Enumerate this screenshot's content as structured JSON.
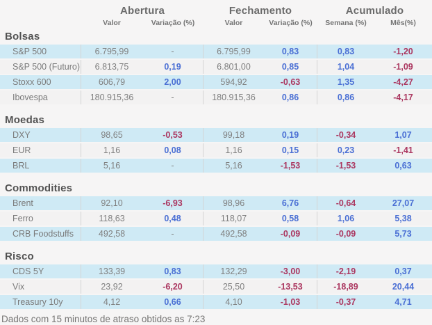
{
  "header": {
    "groups": [
      {
        "label": "Abertura",
        "subs": [
          "Valor",
          "Variação (%)"
        ]
      },
      {
        "label": "Fechamento",
        "subs": [
          "Valor",
          "Variação (%)"
        ]
      },
      {
        "label": "Acumulado",
        "subs": [
          "Semana (%)",
          "Mês(%)"
        ]
      }
    ]
  },
  "sections": [
    {
      "title": "Bolsas",
      "rows": [
        {
          "label": "S&P 500",
          "cells": [
            {
              "v": "6.795,99",
              "s": "n"
            },
            {
              "v": "-",
              "s": "n"
            },
            {
              "v": "6.795,99",
              "s": "n"
            },
            {
              "v": "0,83",
              "s": "pos"
            },
            {
              "v": "0,83",
              "s": "pos"
            },
            {
              "v": "-1,20",
              "s": "neg"
            }
          ]
        },
        {
          "label": "S&P 500 (Futuro)",
          "cells": [
            {
              "v": "6.813,75",
              "s": "n"
            },
            {
              "v": "0,19",
              "s": "pos"
            },
            {
              "v": "6.801,00",
              "s": "n"
            },
            {
              "v": "0,85",
              "s": "pos"
            },
            {
              "v": "1,04",
              "s": "pos"
            },
            {
              "v": "-1,09",
              "s": "neg"
            }
          ]
        },
        {
          "label": "Stoxx 600",
          "cells": [
            {
              "v": "606,79",
              "s": "n"
            },
            {
              "v": "2,00",
              "s": "pos"
            },
            {
              "v": "594,92",
              "s": "n"
            },
            {
              "v": "-0,63",
              "s": "neg"
            },
            {
              "v": "1,35",
              "s": "pos"
            },
            {
              "v": "-4,27",
              "s": "neg"
            }
          ]
        },
        {
          "label": "Ibovespa",
          "cells": [
            {
              "v": "180.915,36",
              "s": "n"
            },
            {
              "v": "-",
              "s": "n"
            },
            {
              "v": "180.915,36",
              "s": "n"
            },
            {
              "v": "0,86",
              "s": "pos"
            },
            {
              "v": "0,86",
              "s": "pos"
            },
            {
              "v": "-4,17",
              "s": "neg"
            }
          ]
        }
      ]
    },
    {
      "title": "Moedas",
      "rows": [
        {
          "label": "DXY",
          "cells": [
            {
              "v": "98,65",
              "s": "n"
            },
            {
              "v": "-0,53",
              "s": "neg"
            },
            {
              "v": "99,18",
              "s": "n"
            },
            {
              "v": "0,19",
              "s": "pos"
            },
            {
              "v": "-0,34",
              "s": "neg"
            },
            {
              "v": "1,07",
              "s": "pos"
            }
          ]
        },
        {
          "label": "EUR",
          "cells": [
            {
              "v": "1,16",
              "s": "n"
            },
            {
              "v": "0,08",
              "s": "pos"
            },
            {
              "v": "1,16",
              "s": "n"
            },
            {
              "v": "0,15",
              "s": "pos"
            },
            {
              "v": "0,23",
              "s": "pos"
            },
            {
              "v": "-1,41",
              "s": "neg"
            }
          ]
        },
        {
          "label": "BRL",
          "cells": [
            {
              "v": "5,16",
              "s": "n"
            },
            {
              "v": "-",
              "s": "n"
            },
            {
              "v": "5,16",
              "s": "n"
            },
            {
              "v": "-1,53",
              "s": "neg"
            },
            {
              "v": "-1,53",
              "s": "neg"
            },
            {
              "v": "0,63",
              "s": "pos"
            }
          ]
        }
      ]
    },
    {
      "title": "Commodities",
      "rows": [
        {
          "label": "Brent",
          "cells": [
            {
              "v": "92,10",
              "s": "n"
            },
            {
              "v": "-6,93",
              "s": "neg"
            },
            {
              "v": "98,96",
              "s": "n"
            },
            {
              "v": "6,76",
              "s": "pos"
            },
            {
              "v": "-0,64",
              "s": "neg"
            },
            {
              "v": "27,07",
              "s": "pos"
            }
          ]
        },
        {
          "label": "Ferro",
          "cells": [
            {
              "v": "118,63",
              "s": "n"
            },
            {
              "v": "0,48",
              "s": "pos"
            },
            {
              "v": "118,07",
              "s": "n"
            },
            {
              "v": "0,58",
              "s": "pos"
            },
            {
              "v": "1,06",
              "s": "pos"
            },
            {
              "v": "5,38",
              "s": "pos"
            }
          ]
        },
        {
          "label": "CRB Foodstuffs",
          "cells": [
            {
              "v": "492,58",
              "s": "n"
            },
            {
              "v": "-",
              "s": "n"
            },
            {
              "v": "492,58",
              "s": "n"
            },
            {
              "v": "-0,09",
              "s": "neg"
            },
            {
              "v": "-0,09",
              "s": "neg"
            },
            {
              "v": "5,73",
              "s": "pos"
            }
          ]
        }
      ]
    },
    {
      "title": "Risco",
      "rows": [
        {
          "label": "CDS 5Y",
          "cells": [
            {
              "v": "133,39",
              "s": "n"
            },
            {
              "v": "0,83",
              "s": "pos"
            },
            {
              "v": "132,29",
              "s": "n"
            },
            {
              "v": "-3,00",
              "s": "neg"
            },
            {
              "v": "-2,19",
              "s": "neg"
            },
            {
              "v": "0,37",
              "s": "pos"
            }
          ]
        },
        {
          "label": "Vix",
          "cells": [
            {
              "v": "23,92",
              "s": "n"
            },
            {
              "v": "-6,20",
              "s": "neg"
            },
            {
              "v": "25,50",
              "s": "n"
            },
            {
              "v": "-13,53",
              "s": "neg"
            },
            {
              "v": "-18,89",
              "s": "neg"
            },
            {
              "v": "20,44",
              "s": "pos"
            }
          ]
        },
        {
          "label": "Treasury 10y",
          "cells": [
            {
              "v": "4,12",
              "s": "n"
            },
            {
              "v": "0,66",
              "s": "pos"
            },
            {
              "v": "4,10",
              "s": "n"
            },
            {
              "v": "-1,03",
              "s": "neg"
            },
            {
              "v": "-0,37",
              "s": "neg"
            },
            {
              "v": "4,71",
              "s": "pos"
            }
          ]
        }
      ]
    }
  ],
  "footer": "Dados com 15 minutos de atraso obtidos as 7:23",
  "colors": {
    "positive": "#4a6fd4",
    "negative": "#ab3760",
    "row_stripe_blue": "#cfeaf5",
    "row_stripe_gray": "#f3f2f2"
  }
}
